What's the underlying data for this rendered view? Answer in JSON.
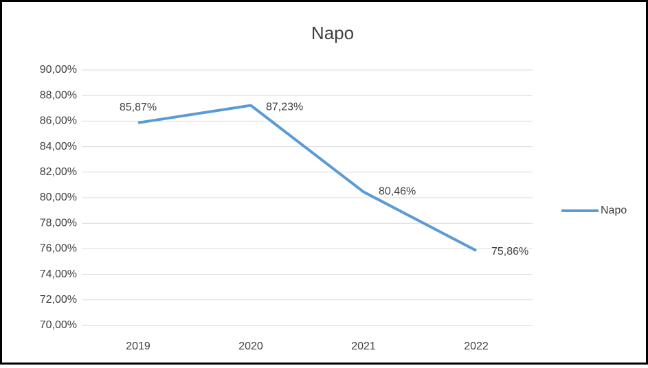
{
  "chart_data": {
    "type": "line",
    "title": "Napo",
    "categories": [
      "2019",
      "2020",
      "2021",
      "2022"
    ],
    "series": [
      {
        "name": "Napo",
        "color": "#5b9bd5",
        "values": [
          85.87,
          87.23,
          80.46,
          75.86
        ],
        "value_labels": [
          "85,87%",
          "87,23%",
          "80,46%",
          "75,86%"
        ]
      }
    ],
    "ylim": [
      70,
      90
    ],
    "yticks": [
      {
        "value": 70,
        "label": "70,00%"
      },
      {
        "value": 72,
        "label": "72,00%"
      },
      {
        "value": 74,
        "label": "74,00%"
      },
      {
        "value": 76,
        "label": "76,00%"
      },
      {
        "value": 78,
        "label": "78,00%"
      },
      {
        "value": 80,
        "label": "80,00%"
      },
      {
        "value": 82,
        "label": "82,00%"
      },
      {
        "value": 84,
        "label": "84,00%"
      },
      {
        "value": 86,
        "label": "86,00%"
      },
      {
        "value": 88,
        "label": "88,00%"
      },
      {
        "value": 90,
        "label": "90,00%"
      }
    ],
    "grid": true,
    "legend": "right"
  }
}
